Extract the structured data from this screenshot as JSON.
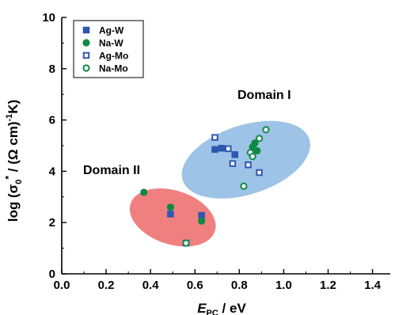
{
  "chart_data": {
    "type": "scatter",
    "title": "",
    "x_ticks": [
      "0.0",
      "0.2",
      "0.4",
      "0.6",
      "0.8",
      "1.0",
      "1.2",
      "1.4"
    ],
    "y_ticks": [
      "0",
      "2",
      "4",
      "6",
      "8",
      "10"
    ],
    "xlim": [
      0,
      1.48
    ],
    "ylim": [
      0,
      10
    ],
    "legend_position": "top-left",
    "series": [
      {
        "name": "Ag-W",
        "marker": "square-filled",
        "color": "#2f56b0",
        "points": [
          [
            0.49,
            2.33
          ],
          [
            0.63,
            2.28
          ],
          [
            0.69,
            4.85
          ],
          [
            0.72,
            4.9
          ],
          [
            0.78,
            4.65
          ]
        ]
      },
      {
        "name": "Na-W",
        "marker": "circle-filled",
        "color": "#0e8a45",
        "points": [
          [
            0.37,
            3.18
          ],
          [
            0.49,
            2.6
          ],
          [
            0.63,
            2.06
          ],
          [
            0.86,
            4.95
          ],
          [
            0.87,
            5.1
          ],
          [
            0.88,
            4.8
          ]
        ]
      },
      {
        "name": "Ag-Mo",
        "marker": "square-open",
        "color": "#2f56b0",
        "points": [
          [
            0.56,
            1.2
          ],
          [
            0.69,
            5.32
          ],
          [
            0.75,
            4.88
          ],
          [
            0.77,
            4.3
          ],
          [
            0.84,
            4.25
          ],
          [
            0.89,
            3.95
          ]
        ]
      },
      {
        "name": "Na-Mo",
        "marker": "circle-open",
        "color": "#0e8a45",
        "points": [
          [
            0.56,
            1.2
          ],
          [
            0.82,
            3.42
          ],
          [
            0.85,
            4.73
          ],
          [
            0.86,
            4.58
          ],
          [
            0.89,
            5.28
          ],
          [
            0.92,
            5.62
          ]
        ]
      }
    ],
    "domains": [
      {
        "label": "Domain I",
        "center": [
          0.83,
          4.45
        ],
        "radii": [
          0.3,
          1.35
        ],
        "rotation_deg": -18,
        "fill": "#9dc3e6"
      },
      {
        "label": "Domain II",
        "center": [
          0.5,
          2.2
        ],
        "radii": [
          0.2,
          1.05
        ],
        "rotation_deg": 18,
        "fill": "#f08080"
      }
    ]
  }
}
